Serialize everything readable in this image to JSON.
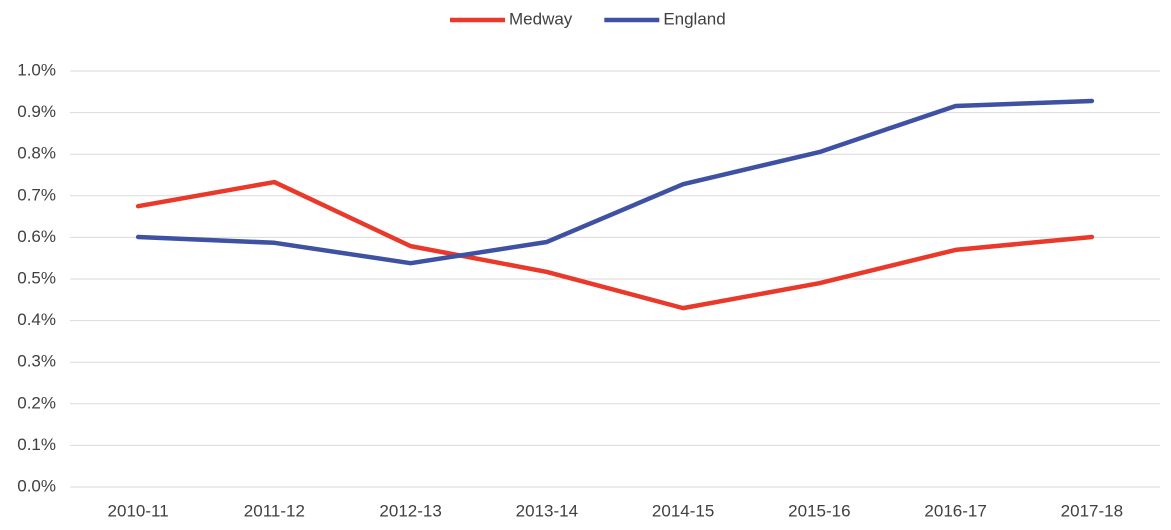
{
  "chart_data": {
    "type": "line",
    "categories": [
      "2010-11",
      "2011-12",
      "2012-13",
      "2013-14",
      "2014-15",
      "2015-16",
      "2016-17",
      "2017-18"
    ],
    "series": [
      {
        "name": "Medway",
        "color": "#e8392b",
        "values": [
          0.675,
          0.733,
          0.579,
          0.517,
          0.43,
          0.49,
          0.57,
          0.601
        ]
      },
      {
        "name": "England",
        "color": "#3f51a3",
        "values": [
          0.601,
          0.587,
          0.538,
          0.589,
          0.728,
          0.805,
          0.916,
          0.928
        ]
      }
    ],
    "ylim": [
      0,
      1.0
    ],
    "yticks": [
      {
        "value": 0,
        "label": "0.0%"
      },
      {
        "value": 0.1,
        "label": "0.1%"
      },
      {
        "value": 0.2,
        "label": "0.2%"
      },
      {
        "value": 0.3,
        "label": "0.3%"
      },
      {
        "value": 0.4,
        "label": "0.4%"
      },
      {
        "value": 0.5,
        "label": "0.5%"
      },
      {
        "value": 0.6,
        "label": "0.6%"
      },
      {
        "value": 0.7,
        "label": "0.7%"
      },
      {
        "value": 0.8,
        "label": "0.8%"
      },
      {
        "value": 0.9,
        "label": "0.9%"
      },
      {
        "value": 1.0,
        "label": "1.0%"
      }
    ],
    "grid": true,
    "legend": "top"
  }
}
